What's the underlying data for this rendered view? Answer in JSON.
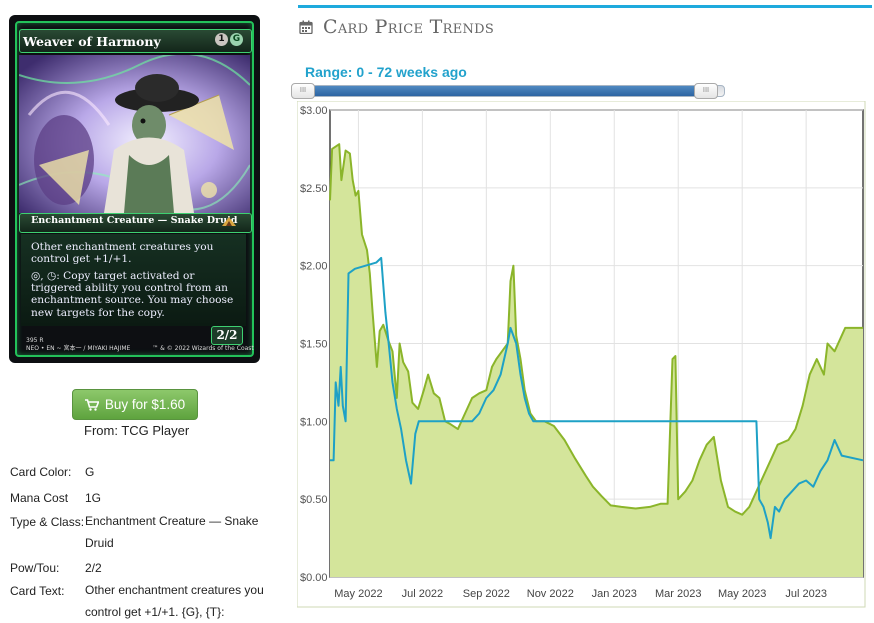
{
  "card": {
    "name": "Weaver of Harmony",
    "mana_cost_symbols": [
      "1",
      "G"
    ],
    "type_line": "Enchantment Creature — Snake Druid",
    "rules_line_1": "Other enchantment creatures you control get +1/+1.",
    "rules_line_2": "◎, ◷: Copy target activated or triggered ability you control from an enchantment source. You may choose new targets for the copy.",
    "power_toughness": "2/2",
    "collector_line_1": "395        R",
    "collector_line_2": "NEO • EN  ~ 宮本一 / MIYAKI HAJIME",
    "copyright": "™ & © 2022 Wizards of the Coast",
    "frame_color": "#23c25a"
  },
  "buy": {
    "label": "Buy for $1.60",
    "from": "From: TCG Player",
    "icon": "shopping-cart-icon"
  },
  "details": [
    {
      "label": "Card Color:",
      "value": "G"
    },
    {
      "label": "Mana Cost",
      "value": "1G"
    },
    {
      "label": "Type & Class:",
      "value": "Enchantment Creature — Snake Druid"
    },
    {
      "label": "Pow/Tou:",
      "value": "2/2"
    },
    {
      "label": "Card Text:",
      "value": "Other enchantment creatures you control get +1/+1. {G}, {T}:"
    }
  ],
  "trends": {
    "title": "Card Price Trends",
    "icon": "calendar-icon",
    "range_label": "Range: 0 - 72 weeks ago",
    "range_from_weeks": 0,
    "range_to_weeks": 72
  },
  "colors": {
    "accent": "#1eaadd",
    "buy_button": "#6fb24b",
    "series_green": "#8bb52a",
    "series_green_fill": "#d4e59b",
    "series_blue": "#1ea1c6"
  },
  "chart_data": {
    "type": "line",
    "x_tick_labels": [
      "May 2022",
      "Jul 2022",
      "Sep 2022",
      "Nov 2022",
      "Jan 2023",
      "Mar 2023",
      "May 2023",
      "Jul 2023"
    ],
    "x_tick_weeks": [
      4,
      13,
      22,
      31,
      40,
      49,
      58,
      67
    ],
    "y_tick_labels": [
      "$3.00",
      "$2.50",
      "$2.00",
      "$1.50",
      "$1.00",
      "$0.50",
      "$0.00"
    ],
    "ylim": [
      0,
      3
    ],
    "xlim_weeks": [
      0,
      75
    ],
    "grid": true,
    "series": [
      {
        "color": "#8bb52a",
        "fill": "#d4e59b",
        "points": [
          [
            0.0,
            2.42
          ],
          [
            0.3,
            2.75
          ],
          [
            1.3,
            2.78
          ],
          [
            1.6,
            2.55
          ],
          [
            2.2,
            2.74
          ],
          [
            2.8,
            2.72
          ],
          [
            3.2,
            2.55
          ],
          [
            3.6,
            2.45
          ],
          [
            4.0,
            2.48
          ],
          [
            4.5,
            2.2
          ],
          [
            5.2,
            2.1
          ],
          [
            5.6,
            1.95
          ],
          [
            6.0,
            1.7
          ],
          [
            6.6,
            1.35
          ],
          [
            7.0,
            1.58
          ],
          [
            7.5,
            1.62
          ],
          [
            8.2,
            1.52
          ],
          [
            8.8,
            1.45
          ],
          [
            9.4,
            1.15
          ],
          [
            9.8,
            1.5
          ],
          [
            10.3,
            1.38
          ],
          [
            11.0,
            1.32
          ],
          [
            11.6,
            1.12
          ],
          [
            12.4,
            1.08
          ],
          [
            13.2,
            1.2
          ],
          [
            13.8,
            1.3
          ],
          [
            14.6,
            1.18
          ],
          [
            15.4,
            1.15
          ],
          [
            16.2,
            1.0
          ],
          [
            17.0,
            0.98
          ],
          [
            18.0,
            0.95
          ],
          [
            19.0,
            1.05
          ],
          [
            20.0,
            1.15
          ],
          [
            21.0,
            1.18
          ],
          [
            22.0,
            1.2
          ],
          [
            22.8,
            1.35
          ],
          [
            23.4,
            1.4
          ],
          [
            24.2,
            1.45
          ],
          [
            25.0,
            1.5
          ],
          [
            25.4,
            1.9
          ],
          [
            25.8,
            2.0
          ],
          [
            26.2,
            1.55
          ],
          [
            26.8,
            1.4
          ],
          [
            27.4,
            1.2
          ],
          [
            28.2,
            1.05
          ],
          [
            29.0,
            1.0
          ],
          [
            30.2,
            1.0
          ],
          [
            31.5,
            0.97
          ],
          [
            33.0,
            0.88
          ],
          [
            34.5,
            0.76
          ],
          [
            36.0,
            0.65
          ],
          [
            37.0,
            0.58
          ],
          [
            38.2,
            0.52
          ],
          [
            39.5,
            0.46
          ],
          [
            41.0,
            0.45
          ],
          [
            43.0,
            0.44
          ],
          [
            45.0,
            0.45
          ],
          [
            46.5,
            0.47
          ],
          [
            47.5,
            0.47
          ],
          [
            48.2,
            1.4
          ],
          [
            48.6,
            1.42
          ],
          [
            49.0,
            0.5
          ],
          [
            50.0,
            0.55
          ],
          [
            51.0,
            0.62
          ],
          [
            52.0,
            0.75
          ],
          [
            53.0,
            0.85
          ],
          [
            54.0,
            0.9
          ],
          [
            55.0,
            0.62
          ],
          [
            56.0,
            0.45
          ],
          [
            57.0,
            0.42
          ],
          [
            58.0,
            0.4
          ],
          [
            59.0,
            0.45
          ],
          [
            60.0,
            0.55
          ],
          [
            61.0,
            0.65
          ],
          [
            62.0,
            0.75
          ],
          [
            63.0,
            0.85
          ],
          [
            64.5,
            0.88
          ],
          [
            65.5,
            0.95
          ],
          [
            66.5,
            1.1
          ],
          [
            67.5,
            1.3
          ],
          [
            68.5,
            1.4
          ],
          [
            69.5,
            1.3
          ],
          [
            70.0,
            1.5
          ],
          [
            71.0,
            1.45
          ],
          [
            72.5,
            1.6
          ],
          [
            75.0,
            1.6
          ]
        ]
      },
      {
        "color": "#1ea1c6",
        "points": [
          [
            0.0,
            0.75
          ],
          [
            0.5,
            0.75
          ],
          [
            0.8,
            1.25
          ],
          [
            1.2,
            1.1
          ],
          [
            1.5,
            1.35
          ],
          [
            1.8,
            1.1
          ],
          [
            2.2,
            1.0
          ],
          [
            2.6,
            1.95
          ],
          [
            3.5,
            1.98
          ],
          [
            5.0,
            2.0
          ],
          [
            6.5,
            2.02
          ],
          [
            7.2,
            2.05
          ],
          [
            7.8,
            1.7
          ],
          [
            8.3,
            1.48
          ],
          [
            8.8,
            1.25
          ],
          [
            9.4,
            1.08
          ],
          [
            10.0,
            0.95
          ],
          [
            10.7,
            0.75
          ],
          [
            11.4,
            0.6
          ],
          [
            12.0,
            0.92
          ],
          [
            12.5,
            1.0
          ],
          [
            14.0,
            1.0
          ],
          [
            16.0,
            1.0
          ],
          [
            18.0,
            1.0
          ],
          [
            20.0,
            1.0
          ],
          [
            21.0,
            1.05
          ],
          [
            22.0,
            1.15
          ],
          [
            23.0,
            1.2
          ],
          [
            24.0,
            1.3
          ],
          [
            25.0,
            1.5
          ],
          [
            25.4,
            1.6
          ],
          [
            26.2,
            1.5
          ],
          [
            26.8,
            1.3
          ],
          [
            27.4,
            1.15
          ],
          [
            28.0,
            1.05
          ],
          [
            28.6,
            1.0
          ],
          [
            32.0,
            1.0
          ],
          [
            38.0,
            1.0
          ],
          [
            44.0,
            1.0
          ],
          [
            50.0,
            1.0
          ],
          [
            56.0,
            1.0
          ],
          [
            60.0,
            1.0
          ],
          [
            60.4,
            0.5
          ],
          [
            61.0,
            0.45
          ],
          [
            61.6,
            0.35
          ],
          [
            62.0,
            0.25
          ],
          [
            62.6,
            0.45
          ],
          [
            63.2,
            0.42
          ],
          [
            64.0,
            0.5
          ],
          [
            65.0,
            0.55
          ],
          [
            66.0,
            0.6
          ],
          [
            67.0,
            0.62
          ],
          [
            68.0,
            0.58
          ],
          [
            69.0,
            0.68
          ],
          [
            70.0,
            0.75
          ],
          [
            71.0,
            0.88
          ],
          [
            72.0,
            0.78
          ],
          [
            75.0,
            0.75
          ]
        ]
      }
    ]
  }
}
